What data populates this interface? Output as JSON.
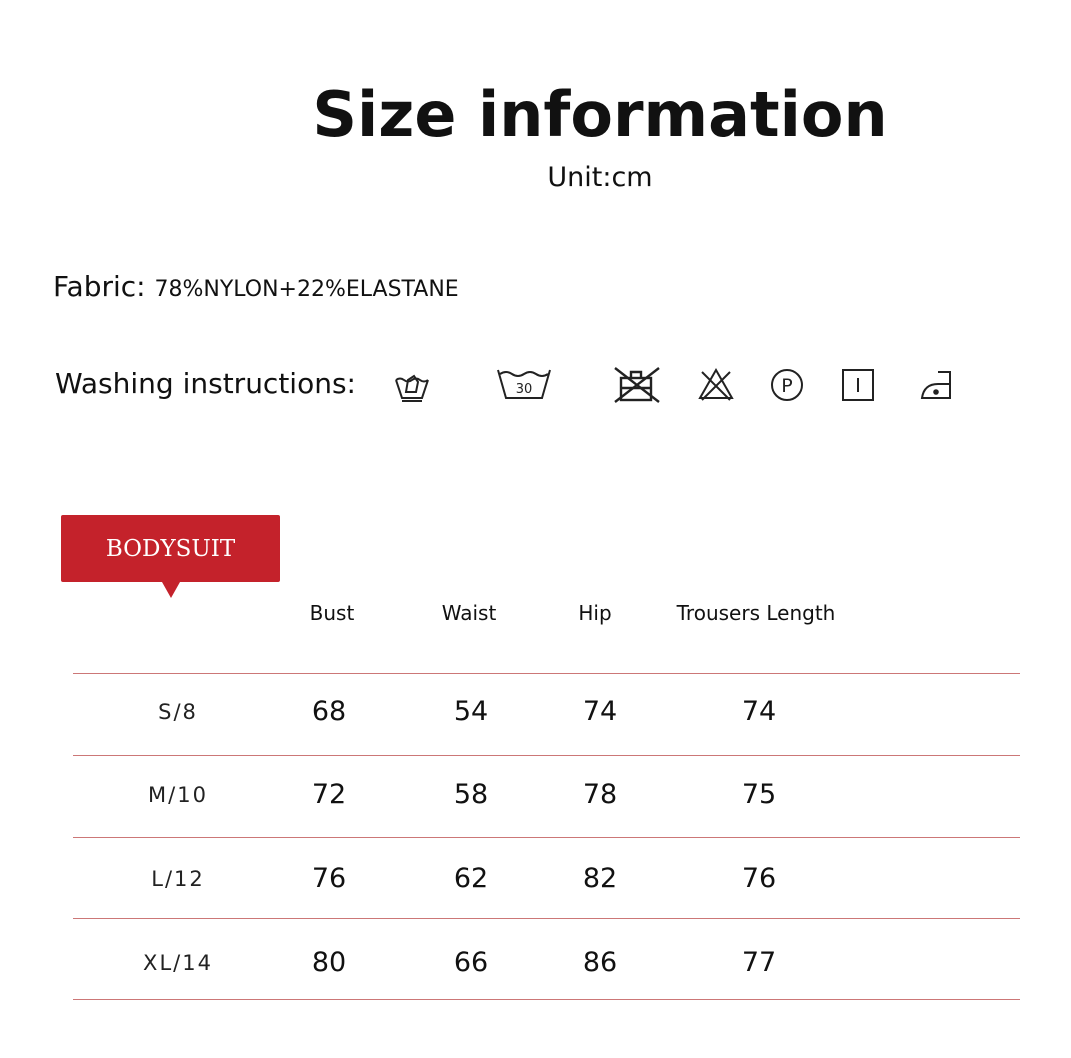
{
  "title": "Size information",
  "unit": "Unit:cm",
  "fabric": {
    "label": "Fabric:",
    "value": "78%NYLON+22%ELASTANE"
  },
  "washing": {
    "label": "Washing instructions:",
    "icons": [
      "hand-wash-icon",
      "wash-30-icon",
      "do-not-tumble-dry-icon",
      "do-not-bleach-icon",
      "dry-clean-p-icon",
      "line-dry-icon",
      "iron-low-icon"
    ]
  },
  "badge": {
    "label": "BODYSUIT",
    "color": "#c4222b"
  },
  "table": {
    "headers": [
      "Bust",
      "Waist",
      "Hip",
      "Trousers Length"
    ],
    "rows": [
      {
        "size": "S/8",
        "values": [
          "68",
          "54",
          "74",
          "74"
        ]
      },
      {
        "size": "M/10",
        "values": [
          "72",
          "58",
          "78",
          "75"
        ]
      },
      {
        "size": "L/12",
        "values": [
          "76",
          "62",
          "82",
          "76"
        ]
      },
      {
        "size": "XL/14",
        "values": [
          "80",
          "66",
          "86",
          "77"
        ]
      }
    ]
  }
}
